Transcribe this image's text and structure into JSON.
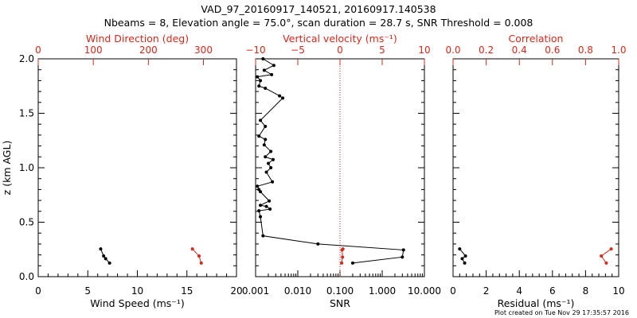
{
  "header": {
    "title_line1": "VAD_97_20160917_140521, 20160917.140538",
    "title_line2": "Nbeams = 8, Elevation angle = 75.0°, scan duration = 28.7 s, SNR Threshold = 0.008"
  },
  "footer": {
    "plot_created": "Plot created on Tue Nov 29 17:35:57 2016"
  },
  "colors": {
    "black": "#000000",
    "red": "#d42a1a"
  },
  "chart_data": [
    {
      "type": "scatter",
      "panel": "left",
      "ylabel": "z (km AGL)",
      "ylim": [
        0,
        2.0
      ],
      "yticks": [
        "0.0",
        "0.5",
        "1.0",
        "1.5",
        "2.0"
      ],
      "xlabel_bottom": "Wind Speed (ms⁻¹)",
      "xlim_bottom": [
        0,
        20
      ],
      "xticks_bottom": [
        "0",
        "5",
        "10",
        "15",
        "20"
      ],
      "xlabel_top": "Wind Direction (deg)",
      "xlim_top": [
        0,
        360
      ],
      "xticks_top": [
        "0",
        "100",
        "200",
        "300"
      ],
      "series": [
        {
          "axis": "bottom",
          "color": "#000000",
          "x": [
            6.3,
            6.6,
            6.8,
            7.2
          ],
          "y": [
            0.255,
            0.19,
            0.165,
            0.125
          ]
        },
        {
          "axis": "top",
          "color": "#d42a1a",
          "x": [
            280,
            292,
            296
          ],
          "y": [
            0.255,
            0.19,
            0.125
          ]
        }
      ]
    },
    {
      "type": "line",
      "panel": "middle",
      "xlabel_bottom": "SNR",
      "xscale": "log",
      "xlim_bottom": [
        0.001,
        10
      ],
      "xticks_bottom": [
        "0.001",
        "0.010",
        "0.100",
        "1.000",
        "10.000"
      ],
      "xlabel_top": "Vertical velocity (ms⁻¹)",
      "xlim_top": [
        -10,
        10
      ],
      "xticks_top": [
        "−10",
        "−5",
        "0",
        "5",
        "10"
      ],
      "reference_line": {
        "axis": "top",
        "value": 0,
        "style": "dotted",
        "color": "#d42a1a"
      },
      "series": [
        {
          "axis": "bottom",
          "color": "#000000",
          "x": [
            0.2,
            3.0,
            3.2,
            0.03,
            0.0015,
            0.0013,
            0.0012,
            0.0022,
            0.0018,
            0.0013,
            0.0021,
            0.0013,
            0.0012,
            0.0011,
            0.0025,
            0.0018,
            0.0023,
            0.002,
            0.0026,
            0.0017,
            0.0023,
            0.0016,
            0.0017,
            0.0012,
            0.0017,
            0.0013,
            0.0044,
            0.0037,
            0.0017,
            0.0012,
            0.0013,
            0.0011,
            0.0024,
            0.0016,
            0.0027,
            0.0015
          ],
          "y": [
            0.125,
            0.18,
            0.245,
            0.3,
            0.375,
            0.55,
            0.605,
            0.62,
            0.645,
            0.655,
            0.695,
            0.78,
            0.8,
            0.83,
            0.87,
            0.96,
            1.0,
            1.04,
            1.075,
            1.1,
            1.15,
            1.21,
            1.26,
            1.29,
            1.38,
            1.435,
            1.64,
            1.66,
            1.73,
            1.75,
            1.8,
            1.835,
            1.855,
            1.895,
            1.94,
            2.0
          ]
        },
        {
          "axis": "top",
          "color": "#d42a1a",
          "x": [
            0.2,
            0.3,
            0.25,
            0.35
          ],
          "y": [
            0.125,
            0.18,
            0.245,
            0.255
          ]
        }
      ]
    },
    {
      "type": "scatter",
      "panel": "right",
      "xlabel_bottom": "Residual (ms⁻¹)",
      "xlim_bottom": [
        0,
        10
      ],
      "xticks_bottom": [
        "0",
        "2",
        "4",
        "6",
        "8",
        "10"
      ],
      "xlabel_top": "Correlation",
      "xlim_top": [
        0,
        1.0
      ],
      "xticks_top": [
        "0.0",
        "0.2",
        "0.4",
        "0.6",
        "0.8",
        "1.0"
      ],
      "series": [
        {
          "axis": "bottom",
          "color": "#000000",
          "x": [
            0.4,
            0.75,
            0.55,
            0.7
          ],
          "y": [
            0.255,
            0.19,
            0.165,
            0.125
          ]
        },
        {
          "axis": "top",
          "color": "#d42a1a",
          "x": [
            0.955,
            0.895,
            0.925
          ],
          "y": [
            0.255,
            0.19,
            0.125
          ]
        }
      ]
    }
  ]
}
